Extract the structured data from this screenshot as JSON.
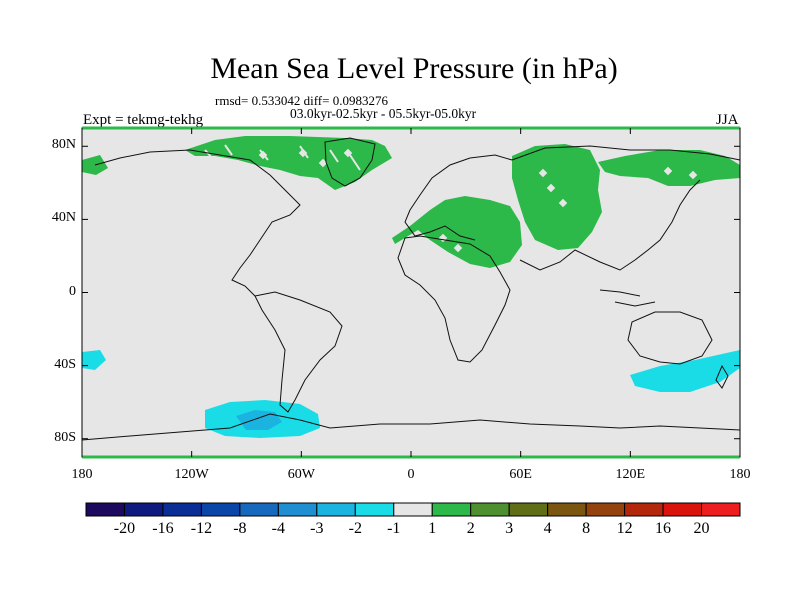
{
  "plot": {
    "title": "Mean Sea Level Pressure (in hPa)",
    "stats": "rmsd= 0.533042 diff= 0.0983276",
    "period": "03.0kyr-02.5kyr - 05.5kyr-05.0kyr",
    "experiment": "Expt = tekmg-tekhg",
    "season": "JJA"
  },
  "axes": {
    "lat_labels": [
      "80N",
      "40N",
      "0",
      "40S",
      "80S"
    ],
    "lat_values": [
      80,
      40,
      0,
      -40,
      -80
    ],
    "lon_labels": [
      "180",
      "120W",
      "60W",
      "0",
      "60E",
      "120E",
      "180"
    ],
    "lon_values": [
      -180,
      -120,
      -60,
      0,
      60,
      120,
      180
    ]
  },
  "colorbar": {
    "labels": [
      "-20",
      "-16",
      "-12",
      "-8",
      "-4",
      "-3",
      "-2",
      "-1",
      "1",
      "2",
      "3",
      "4",
      "8",
      "12",
      "16",
      "20"
    ],
    "colors": [
      "#1d0a5e",
      "#0e1a80",
      "#0a2d96",
      "#0a45a8",
      "#1669bd",
      "#1f8fd2",
      "#1bb4e0",
      "#1adce6",
      "#e6e6e6",
      "#2db84a",
      "#4e8f2f",
      "#5f6e17",
      "#7a5610",
      "#94430e",
      "#b3280c",
      "#d8140c",
      "#ee1e1e"
    ]
  },
  "colors": {
    "ocean_background": "#e6e6e6",
    "positive_anomaly": "#2db84a",
    "negative_anomaly": "#1adce6",
    "strong_negative": "#1bb4e0"
  }
}
